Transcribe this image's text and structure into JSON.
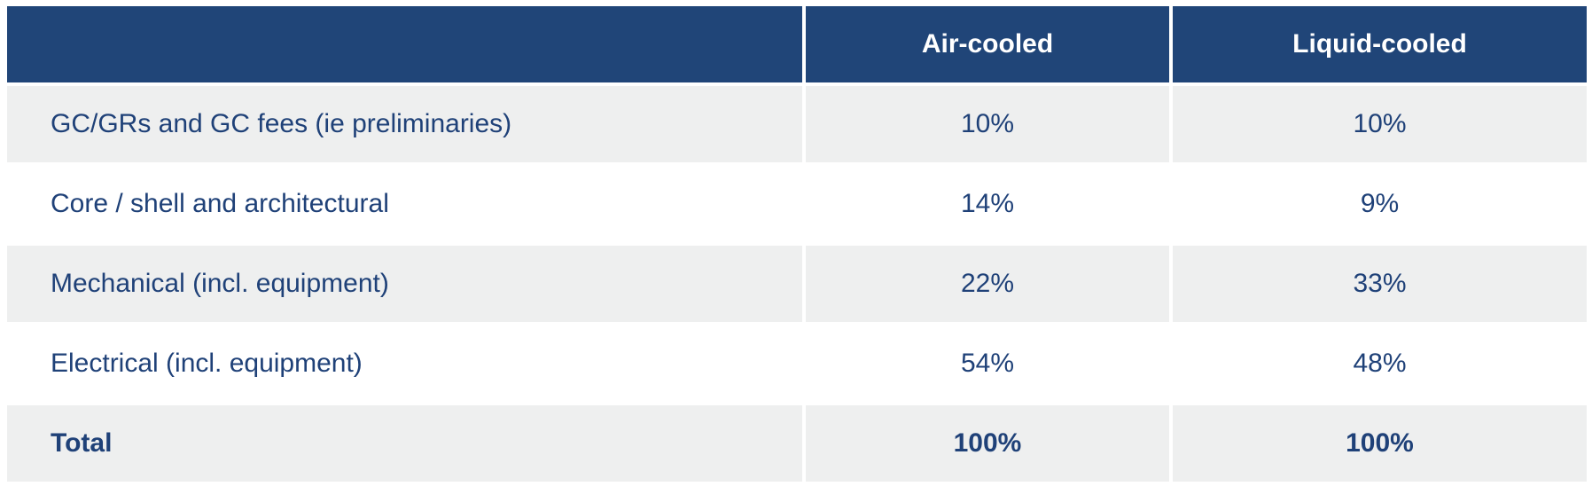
{
  "table": {
    "headers": [
      "",
      "Air-cooled",
      "Liquid-cooled"
    ],
    "rows": [
      {
        "label": "GC/GRs and GC fees (ie preliminaries)",
        "air": "10%",
        "liquid": "10%"
      },
      {
        "label": "Core / shell and architectural",
        "air": "14%",
        "liquid": "9%"
      },
      {
        "label": "Mechanical (incl. equipment)",
        "air": "22%",
        "liquid": "33%"
      },
      {
        "label": "Electrical (incl. equipment)",
        "air": "54%",
        "liquid": "48%"
      },
      {
        "label": "Total",
        "air": "100%",
        "liquid": "100%"
      }
    ]
  },
  "colors": {
    "header_bg": "#204578",
    "header_text": "#ffffff",
    "body_text": "#1f4178",
    "stripe_bg": "#eeefef",
    "row_bg": "#ffffff"
  }
}
